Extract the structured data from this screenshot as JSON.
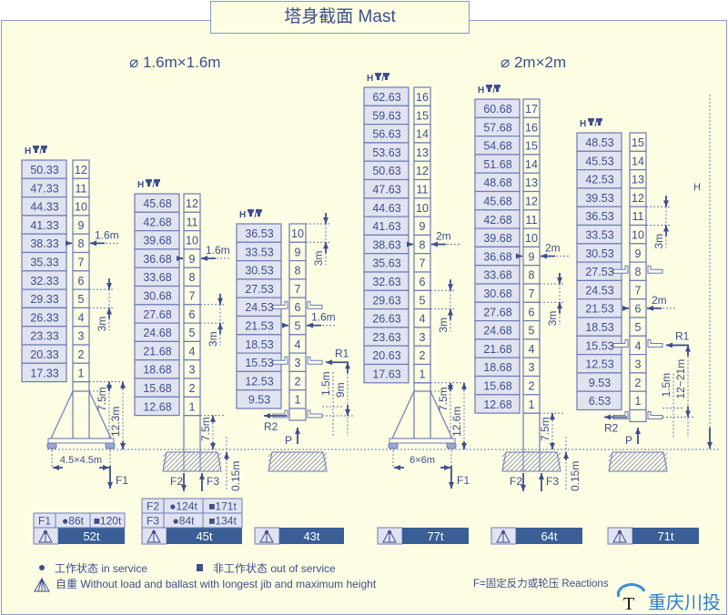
{
  "title": "塔身截面 Mast",
  "groups": [
    {
      "label": "1.6m×1.6m"
    },
    {
      "label": "2m×2m"
    }
  ],
  "height_header": "H",
  "colors": {
    "background": "#fdfde4",
    "line": "#6a7bb8",
    "text": "#3d4f8c",
    "cell_fill": "#e2e3f0",
    "weight_bar": "#3a5f96"
  },
  "configs": [
    {
      "type": "mobile",
      "heights": [
        "50.33",
        "47.33",
        "44.33",
        "41.33",
        "38.33",
        "35.33",
        "32.33",
        "29.33",
        "26.33",
        "23.33",
        "20.33",
        "17.33"
      ],
      "sections": 12,
      "tie_section": 8,
      "labels": {
        "tie": "1.6m",
        "spacing": "3m",
        "lower": "7.5m",
        "total": "12.3m",
        "base": "4.5×4.5m",
        "force": "F1"
      },
      "reactions": [
        {
          "name": "F1",
          "in_service": "86t",
          "out_of_service": "120t"
        }
      ],
      "self_weight": "52t"
    },
    {
      "type": "fixed",
      "heights": [
        "45.68",
        "42.68",
        "39.68",
        "36.68",
        "33.68",
        "30.68",
        "27.68",
        "24.68",
        "21.68",
        "18.68",
        "15.68",
        "12.68"
      ],
      "sections": 12,
      "tie_section": 9,
      "labels": {
        "tie": "1.6m",
        "spacing": "3m",
        "lower": "7.5m",
        "depth": "0.15m",
        "force_a": "F2",
        "force_b": "F3"
      },
      "reactions": [
        {
          "name": "F2",
          "in_service": "124t",
          "out_of_service": "171t"
        },
        {
          "name": "F3",
          "in_service": "84t",
          "out_of_service": "134t"
        }
      ],
      "self_weight": "45t"
    },
    {
      "type": "climbing",
      "heights": [
        "36.53",
        "33.53",
        "30.53",
        "27.53",
        "24.53",
        "21.53",
        "18.53",
        "15.53",
        "12.53",
        "9.53"
      ],
      "sections": 10,
      "tie_section": 5,
      "collar_sections": [
        6,
        3
      ],
      "labels": {
        "tie": "1.6m",
        "spacing": "3m",
        "r1": "R1",
        "r2": "R2",
        "p": "P",
        "collar": "1.5m",
        "range": "9m"
      },
      "self_weight": "43t"
    },
    {
      "type": "mobile",
      "heights": [
        "62.63",
        "59.63",
        "56.63",
        "53.63",
        "50.63",
        "47.63",
        "44.63",
        "41.63",
        "38.63",
        "35.63",
        "32.63",
        "29.63",
        "26.63",
        "23.63",
        "20.63",
        "17.63"
      ],
      "sections": 16,
      "tie_section": 8,
      "labels": {
        "tie": "2m",
        "spacing": "3m",
        "lower": "7.5m",
        "total": "12.6m",
        "base": "6×6m",
        "force": "F1"
      },
      "self_weight": "77t"
    },
    {
      "type": "fixed",
      "heights": [
        "60.68",
        "57.68",
        "54.68",
        "51.68",
        "48.68",
        "45.68",
        "42.68",
        "39.68",
        "36.68",
        "33.68",
        "30.68",
        "27.68",
        "24.68",
        "21.68",
        "18.68",
        "15.68",
        "12.68"
      ],
      "sections": 17,
      "tie_section": 9,
      "labels": {
        "tie": "2m",
        "spacing": "3m",
        "lower": "7.5m",
        "depth": "0.15m",
        "force_a": "F2",
        "force_b": "F3"
      },
      "self_weight": "64t"
    },
    {
      "type": "climbing",
      "heights": [
        "48.53",
        "45.53",
        "42.53",
        "39.53",
        "36.53",
        "33.53",
        "30.53",
        "27.53",
        "24.53",
        "21.53",
        "18.53",
        "15.53",
        "12.53",
        "9.53",
        "6.53"
      ],
      "sections": 15,
      "tie_section": 6,
      "collar_sections": [
        8,
        4
      ],
      "labels": {
        "tie": "2m",
        "spacing": "3m",
        "r1": "R1",
        "r2": "R2",
        "p": "P",
        "collar": "1.5m",
        "range": "12~21m"
      },
      "self_weight": "71t"
    }
  ],
  "legend": {
    "in_service": "工作状态 in service",
    "out_of_service": "非工作状态 out of service",
    "self_weight": "自重 Without load and ballast with longest jib and maximum height",
    "reactions": "F=固定反力或轮压  Reactions"
  },
  "logo": {
    "mark": "T",
    "text": "重庆川投"
  }
}
